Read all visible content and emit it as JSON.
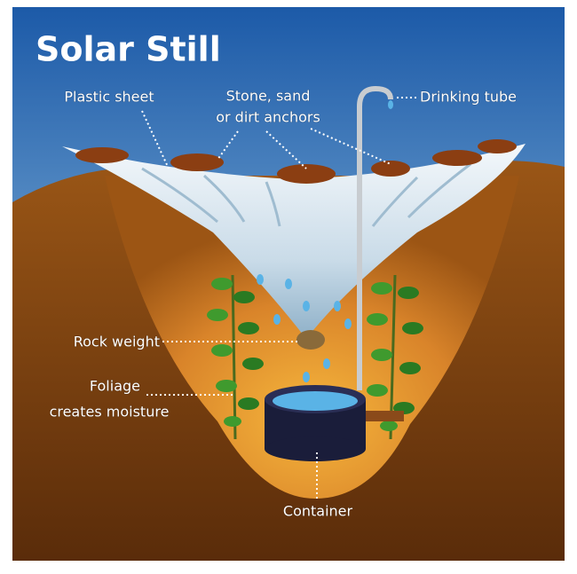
{
  "title": "Solar Still",
  "labels": {
    "plastic_sheet": "Plastic sheet",
    "anchors": [
      "Stone, sand",
      "or dirt anchors"
    ],
    "drinking_tube": "Drinking tube",
    "rock_weight": "Rock weight",
    "foliage": [
      "Foliage",
      "creates moisture"
    ],
    "container": "Container"
  }
}
